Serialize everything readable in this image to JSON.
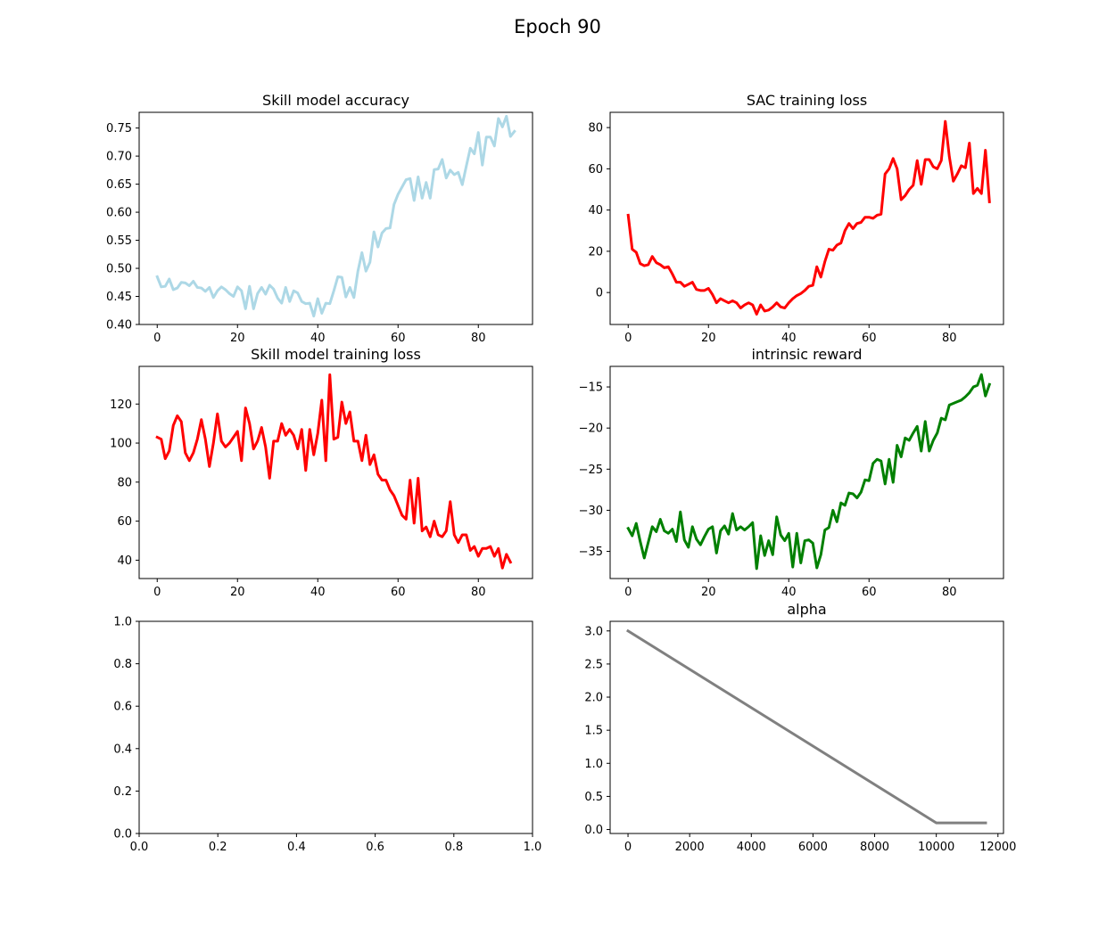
{
  "figure": {
    "suptitle": "Epoch 90"
  },
  "chart_data": [
    {
      "type": "line",
      "title": "Skill model accuracy",
      "xlabel": "",
      "ylabel": "",
      "xlim": [
        -4.5,
        93.5
      ],
      "ylim": [
        0.4,
        0.778
      ],
      "xticks": [
        0,
        20,
        40,
        60,
        80
      ],
      "yticks": [
        0.4,
        0.45,
        0.5,
        0.55,
        0.6,
        0.65,
        0.7,
        0.75
      ],
      "xtick_labels": [
        "0",
        "20",
        "40",
        "60",
        "80"
      ],
      "ytick_labels": [
        "0.40",
        "0.45",
        "0.50",
        "0.55",
        "0.60",
        "0.65",
        "0.70",
        "0.75"
      ],
      "grid": false,
      "series": [
        {
          "color": "#add8e6",
          "linewidth": 3,
          "x_start": 0,
          "x_step": 1,
          "values": [
            0.485,
            0.467,
            0.468,
            0.481,
            0.462,
            0.465,
            0.475,
            0.474,
            0.469,
            0.477,
            0.466,
            0.465,
            0.459,
            0.466,
            0.448,
            0.46,
            0.467,
            0.462,
            0.455,
            0.45,
            0.467,
            0.46,
            0.428,
            0.468,
            0.428,
            0.455,
            0.466,
            0.454,
            0.47,
            0.463,
            0.447,
            0.438,
            0.466,
            0.441,
            0.46,
            0.456,
            0.441,
            0.437,
            0.438,
            0.415,
            0.446,
            0.42,
            0.438,
            0.437,
            0.46,
            0.485,
            0.484,
            0.449,
            0.466,
            0.448,
            0.495,
            0.528,
            0.495,
            0.511,
            0.565,
            0.538,
            0.563,
            0.571,
            0.572,
            0.614,
            0.632,
            0.645,
            0.658,
            0.66,
            0.621,
            0.663,
            0.625,
            0.653,
            0.625,
            0.676,
            0.677,
            0.694,
            0.661,
            0.675,
            0.667,
            0.671,
            0.649,
            0.682,
            0.714,
            0.704,
            0.742,
            0.684,
            0.734,
            0.734,
            0.718,
            0.767,
            0.752,
            0.771,
            0.735,
            0.744
          ]
        }
      ]
    },
    {
      "type": "line",
      "title": "SAC training loss",
      "xlabel": "",
      "ylabel": "",
      "xlim": [
        -4.5,
        93.5
      ],
      "ylim": [
        -15.5,
        87.4
      ],
      "xticks": [
        0,
        20,
        40,
        60,
        80
      ],
      "yticks": [
        0,
        20,
        40,
        60,
        80
      ],
      "xtick_labels": [
        "0",
        "20",
        "40",
        "60",
        "80"
      ],
      "ytick_labels": [
        "0",
        "20",
        "40",
        "60",
        "80"
      ],
      "grid": false,
      "series": [
        {
          "color": "#ff0000",
          "linewidth": 3,
          "x_start": 0,
          "x_step": 1,
          "values": [
            37.5,
            21,
            19.5,
            14,
            13,
            13.5,
            17.5,
            14.5,
            13.5,
            12,
            12.5,
            9,
            5,
            5,
            3,
            4,
            5,
            1.5,
            1,
            1,
            2,
            -1,
            -5,
            -3,
            -4,
            -5,
            -4,
            -5,
            -7.5,
            -6,
            -5,
            -6,
            -10.5,
            -6,
            -9,
            -8.5,
            -7,
            -5,
            -7,
            -7.5,
            -5,
            -3,
            -1.5,
            -0.5,
            1,
            3,
            3.5,
            12.5,
            7.5,
            15,
            21,
            20.5,
            23,
            24,
            30,
            33.5,
            31,
            33.5,
            34,
            36.5,
            36.5,
            36,
            37.5,
            38,
            57.5,
            60,
            65,
            60,
            45,
            47,
            50,
            52,
            64,
            52.5,
            64.5,
            64.5,
            61,
            60,
            64,
            83,
            66,
            54,
            57.5,
            61.5,
            60.5,
            72.5,
            48,
            50.5,
            48,
            69,
            44
          ]
        }
      ]
    },
    {
      "type": "line",
      "title": "Skill model training loss",
      "xlabel": "",
      "ylabel": "",
      "xlim": [
        -4.5,
        93.5
      ],
      "ylim": [
        30.6,
        139.3
      ],
      "xticks": [
        0,
        20,
        40,
        60,
        80
      ],
      "yticks": [
        40,
        60,
        80,
        100,
        120
      ],
      "xtick_labels": [
        "0",
        "20",
        "40",
        "60",
        "80"
      ],
      "ytick_labels": [
        "40",
        "60",
        "80",
        "100",
        "120"
      ],
      "grid": false,
      "series": [
        {
          "color": "#ff0000",
          "linewidth": 3,
          "x_start": 0,
          "x_step": 1,
          "values": [
            103,
            102,
            92,
            96,
            109,
            114,
            111,
            95,
            91,
            95,
            102,
            112,
            102,
            88,
            100,
            115,
            101,
            98,
            100,
            103,
            106,
            91,
            118,
            110,
            97,
            101,
            108,
            98,
            82,
            101,
            101,
            110,
            104,
            107,
            104,
            97,
            107,
            86,
            107,
            94,
            105,
            122,
            91,
            135,
            102,
            103,
            121,
            110,
            116,
            101,
            101,
            91,
            104,
            89,
            94,
            84,
            81,
            81,
            76,
            73,
            68,
            63,
            61,
            81,
            59,
            82,
            55,
            57,
            52,
            60,
            53,
            52,
            55,
            70,
            53,
            49,
            53,
            53,
            45,
            47,
            42,
            46,
            46,
            47,
            42,
            46,
            36,
            43,
            39
          ]
        }
      ]
    },
    {
      "type": "line",
      "title": "intrinsic reward",
      "xlabel": "",
      "ylabel": "",
      "xlim": [
        -4.5,
        93.5
      ],
      "ylim": [
        -38.3,
        -12.5
      ],
      "xticks": [
        0,
        20,
        40,
        60,
        80
      ],
      "yticks": [
        -35,
        -30,
        -25,
        -20,
        -15
      ],
      "xtick_labels": [
        "0",
        "20",
        "40",
        "60",
        "80"
      ],
      "ytick_labels": [
        "−35",
        "−30",
        "−25",
        "−20",
        "−15"
      ],
      "grid": false,
      "series": [
        {
          "color": "#008000",
          "linewidth": 3,
          "x_start": 0,
          "x_step": 1,
          "values": [
            -32.2,
            -33.1,
            -31.6,
            -33.8,
            -35.8,
            -33.9,
            -32,
            -32.6,
            -31.1,
            -32.5,
            -32.8,
            -32.3,
            -33.8,
            -30.2,
            -33.6,
            -34.5,
            -32,
            -33.5,
            -34.2,
            -33.2,
            -32.3,
            -32,
            -35.2,
            -32.5,
            -31.9,
            -32.9,
            -30.4,
            -32.4,
            -32,
            -32.4,
            -32,
            -31.5,
            -37.1,
            -33.1,
            -35.5,
            -33.7,
            -35.4,
            -30.8,
            -33,
            -33.7,
            -32.8,
            -36.9,
            -32.8,
            -36.4,
            -33.7,
            -33.6,
            -34,
            -37,
            -35.4,
            -32.4,
            -32.1,
            -30,
            -31.4,
            -29.1,
            -29.4,
            -27.9,
            -28,
            -28.5,
            -27.8,
            -26.3,
            -26.4,
            -24.3,
            -23.8,
            -24,
            -26.8,
            -23.8,
            -26.6,
            -22.1,
            -23.5,
            -21.2,
            -21.5,
            -20.6,
            -19.8,
            -22.8,
            -19.2,
            -22.8,
            -21.5,
            -20.6,
            -18.8,
            -19,
            -17.2,
            -17,
            -16.8,
            -16.6,
            -16.2,
            -15.7,
            -15,
            -14.8,
            -13.5,
            -16.1,
            -14.7
          ]
        }
      ]
    },
    {
      "type": "line",
      "title": "",
      "xlabel": "",
      "ylabel": "",
      "xlim": [
        0,
        1
      ],
      "ylim": [
        0,
        1
      ],
      "xticks": [
        0,
        0.2,
        0.4,
        0.6,
        0.8,
        1.0
      ],
      "yticks": [
        0,
        0.2,
        0.4,
        0.6,
        0.8,
        1.0
      ],
      "xtick_labels": [
        "0.0",
        "0.2",
        "0.4",
        "0.6",
        "0.8",
        "1.0"
      ],
      "ytick_labels": [
        "0.0",
        "0.2",
        "0.4",
        "0.6",
        "0.8",
        "1.0"
      ],
      "grid": false,
      "series": []
    },
    {
      "type": "line",
      "title": "alpha",
      "xlabel": "",
      "ylabel": "",
      "xlim": [
        -580,
        12180
      ],
      "ylim": [
        -0.06,
        3.145
      ],
      "xticks": [
        0,
        2000,
        4000,
        6000,
        8000,
        10000,
        12000
      ],
      "yticks": [
        0.0,
        0.5,
        1.0,
        1.5,
        2.0,
        2.5,
        3.0
      ],
      "xtick_labels": [
        "0",
        "2000",
        "4000",
        "6000",
        "8000",
        "10000",
        "12000"
      ],
      "ytick_labels": [
        "0.0",
        "0.5",
        "1.0",
        "1.5",
        "2.0",
        "2.5",
        "3.0"
      ],
      "grid": false,
      "series": [
        {
          "color": "#808080",
          "linewidth": 3,
          "x": [
            0,
            10000,
            11600
          ],
          "values": [
            3.0,
            0.1,
            0.1
          ]
        }
      ]
    }
  ]
}
